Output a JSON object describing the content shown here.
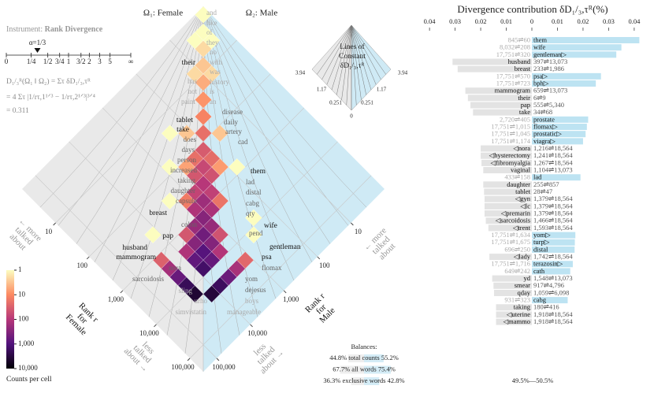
{
  "chart_data": [
    {
      "type": "heatmap",
      "titles": [
        "Ω₁: Female",
        "Ω₂: Male"
      ],
      "instrument": [
        "Instrument:",
        "Rank Divergence"
      ],
      "alpha": {
        "value": 0.3333,
        "label": "α=1/3",
        "ticks": [
          0,
          {
            "value": 0.25,
            "label": "1/4"
          },
          {
            "value": 0.5,
            "label": "1/2"
          },
          {
            "value": 0.75,
            "label": "3/4"
          },
          1,
          {
            "value": 1.5,
            "label": "3/2"
          },
          2,
          3,
          5,
          {
            "value": null,
            "label": "∞"
          }
        ]
      },
      "formula": [
        "D₁/₃ᴿ(Ω₁ ‖ Ω₂) = Στ δD₁/₃,τᴿ",
        "= 4 Στ |1/rτ,1¹ᐟ³ − 1/rτ,2¹ᐟ³|³ᐟ⁴",
        "= 0.311"
      ],
      "axis_labels": [
        [
          "Rank r",
          "for",
          "Female"
        ],
        [
          "Rank r",
          "for",
          "Male"
        ]
      ],
      "annotations": {
        "more": [
          "← more",
          "talked",
          "about"
        ],
        "less": [
          "less",
          "talked",
          "about →"
        ]
      },
      "rank_lim": [
        1,
        250000
      ],
      "rank_ticks": [
        10,
        100,
        {
          "value": 1000,
          "label": "1,000"
        },
        {
          "value": 10000,
          "label": "10,000"
        },
        {
          "value": 100000,
          "label": "100,000"
        }
      ],
      "background_colors": [
        "#e9e9e9",
        "#cfeaf5"
      ],
      "words": {
        "female": [
          "their",
          "has",
          "not",
          "paint",
          "tablet",
          "take",
          "does",
          "days",
          "person",
          "increased",
          "taking",
          "daughter",
          "capsule",
          "breast",
          "colon",
          "pap",
          "husband",
          "mammogram",
          "nora",
          "sarcoidosis",
          "sling",
          "urho",
          "simvistatin"
        ],
        "shared": [
          "and",
          "like",
          "of",
          "they",
          "no",
          "with",
          "was",
          "history",
          "is",
          "an",
          "disease",
          "daily",
          "artery",
          "cad",
          "lad",
          "distal",
          "cabg",
          "qty",
          "pend",
          "yom",
          "dejesus",
          "boys",
          "manageable"
        ],
        "male": [
          "them",
          "wife",
          "gentleman",
          "psa",
          "flomax"
        ]
      },
      "cells": [
        [
          1,
          1,
          1
        ],
        [
          1.8,
          1.8,
          1
        ],
        [
          3.2,
          3.2,
          2
        ],
        [
          5.6,
          5.6,
          3
        ],
        [
          10,
          10,
          5
        ],
        [
          18,
          18,
          8
        ],
        [
          32,
          32,
          12
        ],
        [
          56,
          56,
          20
        ],
        [
          100,
          100,
          35
        ],
        [
          178,
          178,
          60
        ],
        [
          316,
          316,
          100
        ],
        [
          562,
          562,
          180
        ],
        [
          1000,
          1000,
          300
        ],
        [
          1778,
          1778,
          500
        ],
        [
          3162,
          3162,
          900
        ],
        [
          100,
          178,
          20
        ],
        [
          178,
          100,
          22
        ],
        [
          178,
          316,
          40
        ],
        [
          316,
          178,
          45
        ],
        [
          316,
          562,
          70
        ],
        [
          562,
          316,
          75
        ],
        [
          562,
          1000,
          120
        ],
        [
          1000,
          562,
          130
        ],
        [
          1000,
          1778,
          200
        ],
        [
          1778,
          1000,
          210
        ],
        [
          1778,
          3162,
          300
        ],
        [
          3162,
          1778,
          320
        ],
        [
          100,
          316,
          6
        ],
        [
          316,
          100,
          7
        ],
        [
          316,
          1000,
          15
        ],
        [
          1000,
          316,
          18
        ],
        [
          1000,
          3162,
          40
        ],
        [
          3162,
          1000,
          45
        ],
        [
          32,
          100,
          3
        ],
        [
          100,
          32,
          3
        ],
        [
          5.6,
          10,
          2
        ],
        [
          10,
          5.6,
          2
        ],
        [
          1.8,
          3.2,
          1
        ],
        [
          3.2,
          1.8,
          1
        ],
        [
          3162,
          5623,
          700
        ],
        [
          5623,
          3162,
          650
        ],
        [
          5623,
          5623,
          1500
        ],
        [
          1778,
          5623,
          120
        ],
        [
          5623,
          1778,
          110
        ],
        [
          1000,
          17783,
          30
        ],
        [
          1778,
          17783,
          150
        ],
        [
          3162,
          17783,
          600
        ],
        [
          5623,
          17783,
          2000
        ],
        [
          10000,
          17783,
          4000
        ],
        [
          17783,
          1000,
          25
        ],
        [
          17783,
          1778,
          140
        ],
        [
          17783,
          3162,
          550
        ],
        [
          17783,
          5623,
          1800
        ],
        [
          17783,
          10000,
          3500
        ],
        [
          562,
          56,
          1
        ],
        [
          5623,
          178,
          1
        ],
        [
          10000,
          316,
          1
        ],
        [
          178,
          1778,
          1
        ],
        [
          316,
          10000,
          1
        ],
        [
          56,
          562,
          1
        ],
        [
          18,
          178,
          1
        ]
      ],
      "colormap": [
        "#fcfdbf",
        "#fc8961",
        "#b73779",
        "#51127c",
        "#000004"
      ],
      "color_lim": [
        1,
        10000
      ],
      "color_ticks": [
        1,
        10,
        100,
        {
          "value": 1000,
          "label": "1,000"
        },
        {
          "value": 10000,
          "label": "10,000"
        }
      ],
      "colorbar_label": "Counts per cell",
      "contour_inset": {
        "title": [
          "Lines of",
          "Constant",
          "δD₁/₃,τᴿ"
        ],
        "labels": [
          "3.94",
          "1.17",
          "0.251",
          "0"
        ]
      },
      "balances": {
        "title": "Balances:",
        "rows": [
          {
            "label": "total counts",
            "values": [
              44.8,
              55.2
            ],
            "value_labels": [
              "44.8%",
              "55.2%"
            ]
          },
          {
            "label": "all words",
            "values": [
              67.7,
              75.4
            ],
            "value_labels": [
              "67.7%",
              "75.4%"
            ]
          },
          {
            "label": "exclusive words",
            "values": [
              36.3,
              42.8
            ],
            "value_labels": [
              "36.3%",
              "42.8%"
            ]
          }
        ]
      }
    },
    {
      "type": "bar",
      "orientation": "horizontal",
      "title": "Divergence contribution δD₁/₃,τᴿ(%)",
      "xlim": [
        -0.0425,
        0.0425
      ],
      "xticks": [
        {
          "value": -0.04,
          "label": "0.04"
        },
        {
          "value": -0.03,
          "label": "0.03"
        },
        {
          "value": -0.02,
          "label": "0.02"
        },
        {
          "value": -0.01,
          "label": "0.01"
        },
        0,
        0.01,
        0.02,
        0.03,
        0.04
      ],
      "colors": [
        "#e3e3e3",
        "#bde3f2"
      ],
      "categories": [
        "them",
        "wife",
        "gentleman▷",
        "husband",
        "breast",
        "psa▷",
        "bph▷",
        "mammogram",
        "their",
        "pap",
        "take",
        "prostate",
        "flomax▷",
        "prostatic▷",
        "viagra▷",
        "◁nora",
        "◁hysterectomy",
        "◁fibromyalgia",
        "vaginal",
        "lad",
        "daughter",
        "tablet",
        "◁gyn",
        "◁lc",
        "◁premarin",
        "◁sarcoidosis",
        "◁trent",
        "yom▷",
        "turp▷",
        "distal",
        "◁lady",
        "terazosin▷",
        "cath",
        "yd",
        "smear",
        "qday",
        "cabg",
        "taking",
        "◁uterine",
        "◁mammo"
      ],
      "rank_labels": [
        "845⇌60",
        "8,032⇌208",
        "17,751⇌320",
        "397⇌13,073",
        "233⇌1,986",
        "17,751⇌570",
        "17,751⇌723",
        "659⇌13,073",
        "6⇌9",
        "555⇌5,340",
        "34⇌68",
        "2,720⇌405",
        "17,751⇌1,015",
        "17,751⇌1,045",
        "17,751⇌1,174",
        "1,216⇌18,564",
        "1,241⇌18,564",
        "1,267⇌18,564",
        "1,104⇌13,073",
        "433⇌158",
        "255⇌857",
        "28⇌47",
        "1,379⇌18,564",
        "1,379⇌18,564",
        "1,379⇌18,564",
        "1,466⇌18,564",
        "1,593⇌18,564",
        "17,751⇌1,634",
        "17,751⇌1,675",
        "696⇌250",
        "1,742⇌18,564",
        "17,751⇌1,716",
        "649⇌242",
        "1,548⇌13,073",
        "917⇌4,796",
        "1,059⇌6,098",
        "931⇌323",
        "180⇌416",
        "1,918⇌18,564",
        "1,918⇌18,564"
      ],
      "values": [
        0.042,
        0.035,
        0.033,
        -0.031,
        -0.029,
        0.027,
        0.025,
        -0.026,
        -0.025,
        -0.024,
        -0.023,
        0.022,
        0.0215,
        0.021,
        0.02,
        -0.02,
        -0.02,
        -0.0197,
        -0.019,
        0.019,
        -0.019,
        -0.0187,
        -0.0185,
        -0.0185,
        -0.0185,
        -0.018,
        -0.017,
        0.017,
        0.0168,
        0.0167,
        -0.0166,
        0.016,
        0.015,
        -0.0155,
        -0.015,
        -0.0148,
        0.014,
        -0.014,
        -0.014,
        -0.014
      ],
      "footer": "49.5%—50.5%"
    }
  ]
}
